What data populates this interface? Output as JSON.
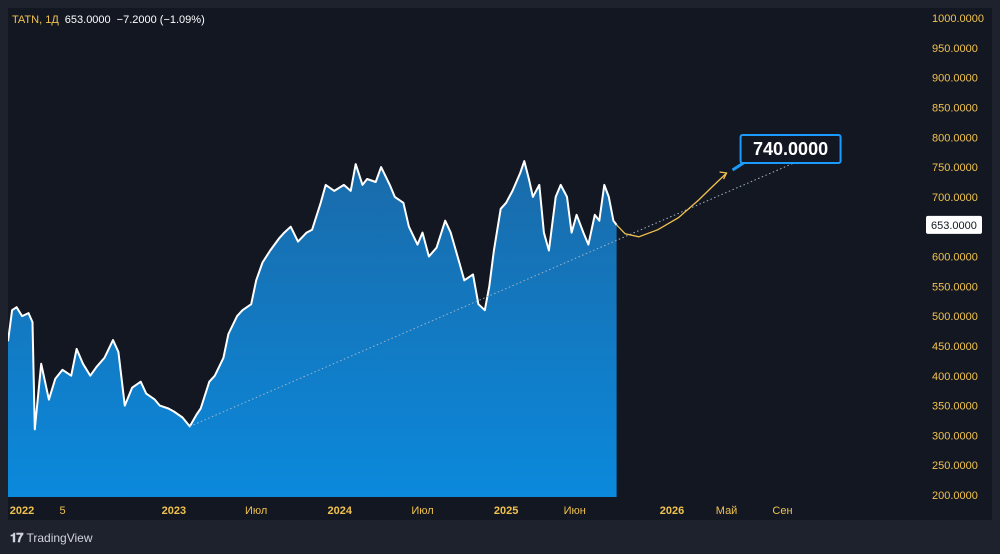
{
  "legend": {
    "symbol": "TATN, 1Д",
    "last": "653.0000",
    "change": "−7.2000 (−1.09%)"
  },
  "brand": {
    "label": "TradingView",
    "icon": "tradingview-logo-icon"
  },
  "colors": {
    "background": "#131722",
    "frame": "#1e222d",
    "line": "#ffffff",
    "area_top": "#1a6fb0",
    "area_bottom": "#0b89dc",
    "tick_text": "#f0c24f",
    "forecast": "#f0c24f",
    "callout_border": "#1c9bff",
    "price_label_bg": "#ffffff",
    "price_label_text": "#131722"
  },
  "forecast_label": "740.0000",
  "chart_data": {
    "type": "area",
    "title": "",
    "xlabel": "",
    "ylabel": "",
    "ylim": [
      200,
      1000
    ],
    "grid": false,
    "y_ticks": [
      "200.0000",
      "250.0000",
      "300.0000",
      "350.0000",
      "400.0000",
      "450.0000",
      "500.0000",
      "550.0000",
      "600.0000",
      "650.0000",
      "700.0000",
      "750.0000",
      "800.0000",
      "850.0000",
      "900.0000",
      "950.0000",
      "1000.0000"
    ],
    "x_ticks": [
      {
        "label": "2022",
        "x": "2022-01-01"
      },
      {
        "label": "5",
        "x": "2022-05-01"
      },
      {
        "label": "2023",
        "x": "2023-01-01"
      },
      {
        "label": "Июл",
        "x": "2023-07-01"
      },
      {
        "label": "2024",
        "x": "2024-01-01"
      },
      {
        "label": "Июл",
        "x": "2024-07-01"
      },
      {
        "label": "2025",
        "x": "2025-01-01"
      },
      {
        "label": "Июн",
        "x": "2025-06-01"
      },
      {
        "label": "2026",
        "x": "2026-01-01"
      },
      {
        "label": "Май",
        "x": "2026-05-01"
      },
      {
        "label": "Сен",
        "x": "2026-09-01"
      }
    ],
    "series": [
      {
        "values": [
          {
            "x": "2022-01-01",
            "y": 458
          },
          {
            "x": "2022-01-10",
            "y": 510
          },
          {
            "x": "2022-01-20",
            "y": 515
          },
          {
            "x": "2022-02-01",
            "y": 500
          },
          {
            "x": "2022-02-15",
            "y": 505
          },
          {
            "x": "2022-02-24",
            "y": 490
          },
          {
            "x": "2022-03-01",
            "y": 310
          },
          {
            "x": "2022-03-15",
            "y": 420
          },
          {
            "x": "2022-04-01",
            "y": 360
          },
          {
            "x": "2022-04-15",
            "y": 395
          },
          {
            "x": "2022-05-01",
            "y": 410
          },
          {
            "x": "2022-05-20",
            "y": 400
          },
          {
            "x": "2022-06-01",
            "y": 445
          },
          {
            "x": "2022-06-15",
            "y": 420
          },
          {
            "x": "2022-07-01",
            "y": 400
          },
          {
            "x": "2022-07-15",
            "y": 415
          },
          {
            "x": "2022-08-01",
            "y": 430
          },
          {
            "x": "2022-08-20",
            "y": 460
          },
          {
            "x": "2022-09-01",
            "y": 440
          },
          {
            "x": "2022-09-15",
            "y": 350
          },
          {
            "x": "2022-10-01",
            "y": 380
          },
          {
            "x": "2022-10-20",
            "y": 390
          },
          {
            "x": "2022-11-01",
            "y": 370
          },
          {
            "x": "2022-11-20",
            "y": 360
          },
          {
            "x": "2022-12-01",
            "y": 350
          },
          {
            "x": "2022-12-20",
            "y": 345
          },
          {
            "x": "2023-01-01",
            "y": 340
          },
          {
            "x": "2023-01-20",
            "y": 330
          },
          {
            "x": "2023-02-05",
            "y": 315
          },
          {
            "x": "2023-02-20",
            "y": 335
          },
          {
            "x": "2023-03-01",
            "y": 345
          },
          {
            "x": "2023-03-20",
            "y": 390
          },
          {
            "x": "2023-04-01",
            "y": 400
          },
          {
            "x": "2023-04-20",
            "y": 430
          },
          {
            "x": "2023-05-01",
            "y": 470
          },
          {
            "x": "2023-05-20",
            "y": 500
          },
          {
            "x": "2023-06-01",
            "y": 510
          },
          {
            "x": "2023-06-20",
            "y": 520
          },
          {
            "x": "2023-07-01",
            "y": 560
          },
          {
            "x": "2023-07-15",
            "y": 590
          },
          {
            "x": "2023-08-01",
            "y": 610
          },
          {
            "x": "2023-08-20",
            "y": 630
          },
          {
            "x": "2023-09-01",
            "y": 640
          },
          {
            "x": "2023-09-15",
            "y": 650
          },
          {
            "x": "2023-10-01",
            "y": 625
          },
          {
            "x": "2023-10-20",
            "y": 640
          },
          {
            "x": "2023-11-01",
            "y": 645
          },
          {
            "x": "2023-11-20",
            "y": 690
          },
          {
            "x": "2023-12-01",
            "y": 720
          },
          {
            "x": "2023-12-20",
            "y": 710
          },
          {
            "x": "2024-01-10",
            "y": 720
          },
          {
            "x": "2024-01-25",
            "y": 710
          },
          {
            "x": "2024-02-05",
            "y": 755
          },
          {
            "x": "2024-02-20",
            "y": 720
          },
          {
            "x": "2024-03-01",
            "y": 730
          },
          {
            "x": "2024-03-20",
            "y": 725
          },
          {
            "x": "2024-04-01",
            "y": 750
          },
          {
            "x": "2024-04-20",
            "y": 720
          },
          {
            "x": "2024-05-01",
            "y": 700
          },
          {
            "x": "2024-05-20",
            "y": 690
          },
          {
            "x": "2024-06-01",
            "y": 650
          },
          {
            "x": "2024-06-20",
            "y": 620
          },
          {
            "x": "2024-07-01",
            "y": 640
          },
          {
            "x": "2024-07-15",
            "y": 600
          },
          {
            "x": "2024-08-01",
            "y": 615
          },
          {
            "x": "2024-08-20",
            "y": 660
          },
          {
            "x": "2024-09-01",
            "y": 640
          },
          {
            "x": "2024-09-20",
            "y": 590
          },
          {
            "x": "2024-10-01",
            "y": 560
          },
          {
            "x": "2024-10-20",
            "y": 570
          },
          {
            "x": "2024-11-01",
            "y": 520
          },
          {
            "x": "2024-11-15",
            "y": 510
          },
          {
            "x": "2024-11-25",
            "y": 550
          },
          {
            "x": "2024-12-05",
            "y": 610
          },
          {
            "x": "2024-12-20",
            "y": 680
          },
          {
            "x": "2025-01-01",
            "y": 690
          },
          {
            "x": "2025-01-15",
            "y": 710
          },
          {
            "x": "2025-02-01",
            "y": 740
          },
          {
            "x": "2025-02-10",
            "y": 760
          },
          {
            "x": "2025-02-20",
            "y": 730
          },
          {
            "x": "2025-03-01",
            "y": 700
          },
          {
            "x": "2025-03-15",
            "y": 720
          },
          {
            "x": "2025-03-25",
            "y": 640
          },
          {
            "x": "2025-04-05",
            "y": 610
          },
          {
            "x": "2025-04-20",
            "y": 700
          },
          {
            "x": "2025-05-01",
            "y": 720
          },
          {
            "x": "2025-05-15",
            "y": 700
          },
          {
            "x": "2025-05-25",
            "y": 640
          },
          {
            "x": "2025-06-05",
            "y": 670
          },
          {
            "x": "2025-06-20",
            "y": 640
          },
          {
            "x": "2025-07-01",
            "y": 620
          },
          {
            "x": "2025-07-15",
            "y": 670
          },
          {
            "x": "2025-07-25",
            "y": 660
          },
          {
            "x": "2025-08-05",
            "y": 720
          },
          {
            "x": "2025-08-15",
            "y": 700
          },
          {
            "x": "2025-08-25",
            "y": 660
          },
          {
            "x": "2025-09-01",
            "y": 653
          }
        ]
      }
    ],
    "trendline": [
      {
        "x": "2023-02-05",
        "y": 315
      },
      {
        "x": "2026-12-20",
        "y": 785
      }
    ],
    "forecast_curve": [
      {
        "x": "2025-09-01",
        "y": 653
      },
      {
        "x": "2025-09-20",
        "y": 638
      },
      {
        "x": "2025-10-20",
        "y": 633
      },
      {
        "x": "2025-12-01",
        "y": 645
      },
      {
        "x": "2026-01-15",
        "y": 665
      },
      {
        "x": "2026-03-01",
        "y": 695
      },
      {
        "x": "2026-04-01",
        "y": 718
      },
      {
        "x": "2026-05-01",
        "y": 740
      }
    ],
    "current_price": 653,
    "forecast_target": 740
  }
}
